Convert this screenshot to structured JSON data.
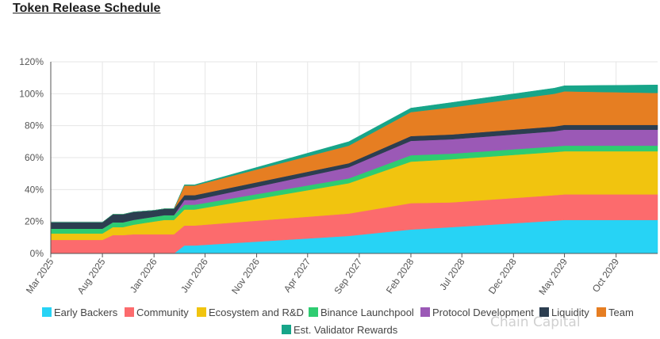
{
  "page": {
    "title": "Token Release Schedule",
    "watermark": "Chain Capital"
  },
  "colors": {
    "gridline": "#e6e6e6",
    "axis": "#555555"
  },
  "chart_data": {
    "type": "area",
    "stacked": true,
    "title": "",
    "xlabel": "",
    "ylabel": "",
    "ylim": [
      0,
      120
    ],
    "yticks": [
      "0%",
      "20%",
      "40%",
      "60%",
      "80%",
      "100%",
      "120%"
    ],
    "xticks": [
      "Mar 2025",
      "Aug 2025",
      "Jan 2026",
      "Jun 2026",
      "Nov 2026",
      "Apr 2027",
      "Sep 2027",
      "Feb 2028",
      "Jul 2028",
      "Dec 2028",
      "May 2029",
      "Oct 2029"
    ],
    "grid": true,
    "legend_position": "bottom",
    "x": [
      "2025-03",
      "2025-07",
      "2025-08",
      "2025-09",
      "2025-10",
      "2025-11",
      "2025-12",
      "2026-01",
      "2026-02",
      "2026-03",
      "2026-04",
      "2026-05",
      "2027-08",
      "2028-02",
      "2028-06",
      "2029-04",
      "2029-05",
      "2030-02"
    ],
    "series": [
      {
        "name": "Early Backers",
        "color": "#27d3f5",
        "values": [
          0,
          0,
          0,
          0,
          0,
          0,
          0,
          0,
          0,
          0,
          5,
          5,
          11,
          15,
          16.5,
          20.5,
          21,
          21
        ]
      },
      {
        "name": "Community",
        "color": "#fc6b6d",
        "values": [
          8.5,
          8.5,
          8.5,
          11.5,
          11.5,
          12,
          12,
          12,
          12,
          12,
          12.5,
          12.5,
          14,
          16.5,
          15.5,
          16,
          16,
          16
        ]
      },
      {
        "name": "Ecosystem and R&D",
        "color": "#f1c40f",
        "values": [
          4,
          4,
          4,
          5,
          5,
          6,
          7,
          8,
          9,
          9,
          10,
          10,
          19,
          26,
          27,
          27,
          27,
          27
        ]
      },
      {
        "name": "Binance Launchpool",
        "color": "#2ecc71",
        "values": [
          3,
          3,
          3,
          3,
          3,
          3,
          3,
          3,
          3,
          3,
          3,
          3,
          3,
          4,
          3.5,
          3.5,
          3.5,
          3.5
        ]
      },
      {
        "name": "Protocol Development",
        "color": "#9b59b6",
        "values": [
          0,
          0,
          0,
          0,
          0,
          0,
          0,
          0,
          0,
          0,
          3,
          3,
          7,
          9,
          9,
          9.5,
          10,
          10
        ]
      },
      {
        "name": "Liquidity",
        "color": "#2c3e50",
        "values": [
          4,
          4,
          4,
          5,
          5,
          5,
          4.5,
          4,
          4,
          4,
          3,
          3,
          2.5,
          3,
          3,
          3,
          3,
          3
        ]
      },
      {
        "name": "Team",
        "color": "#e67e22",
        "values": [
          0,
          0,
          0,
          0,
          0,
          0,
          0,
          0,
          0,
          0,
          6,
          6,
          11,
          15,
          17,
          20.5,
          21,
          20
        ]
      },
      {
        "name": "Est. Validator Rewards",
        "color": "#17a589",
        "values": [
          0,
          0,
          0,
          0,
          0,
          0,
          0,
          0,
          0,
          0,
          0.5,
          0.5,
          2.5,
          2.5,
          3,
          3.5,
          3.5,
          5
        ]
      }
    ]
  }
}
